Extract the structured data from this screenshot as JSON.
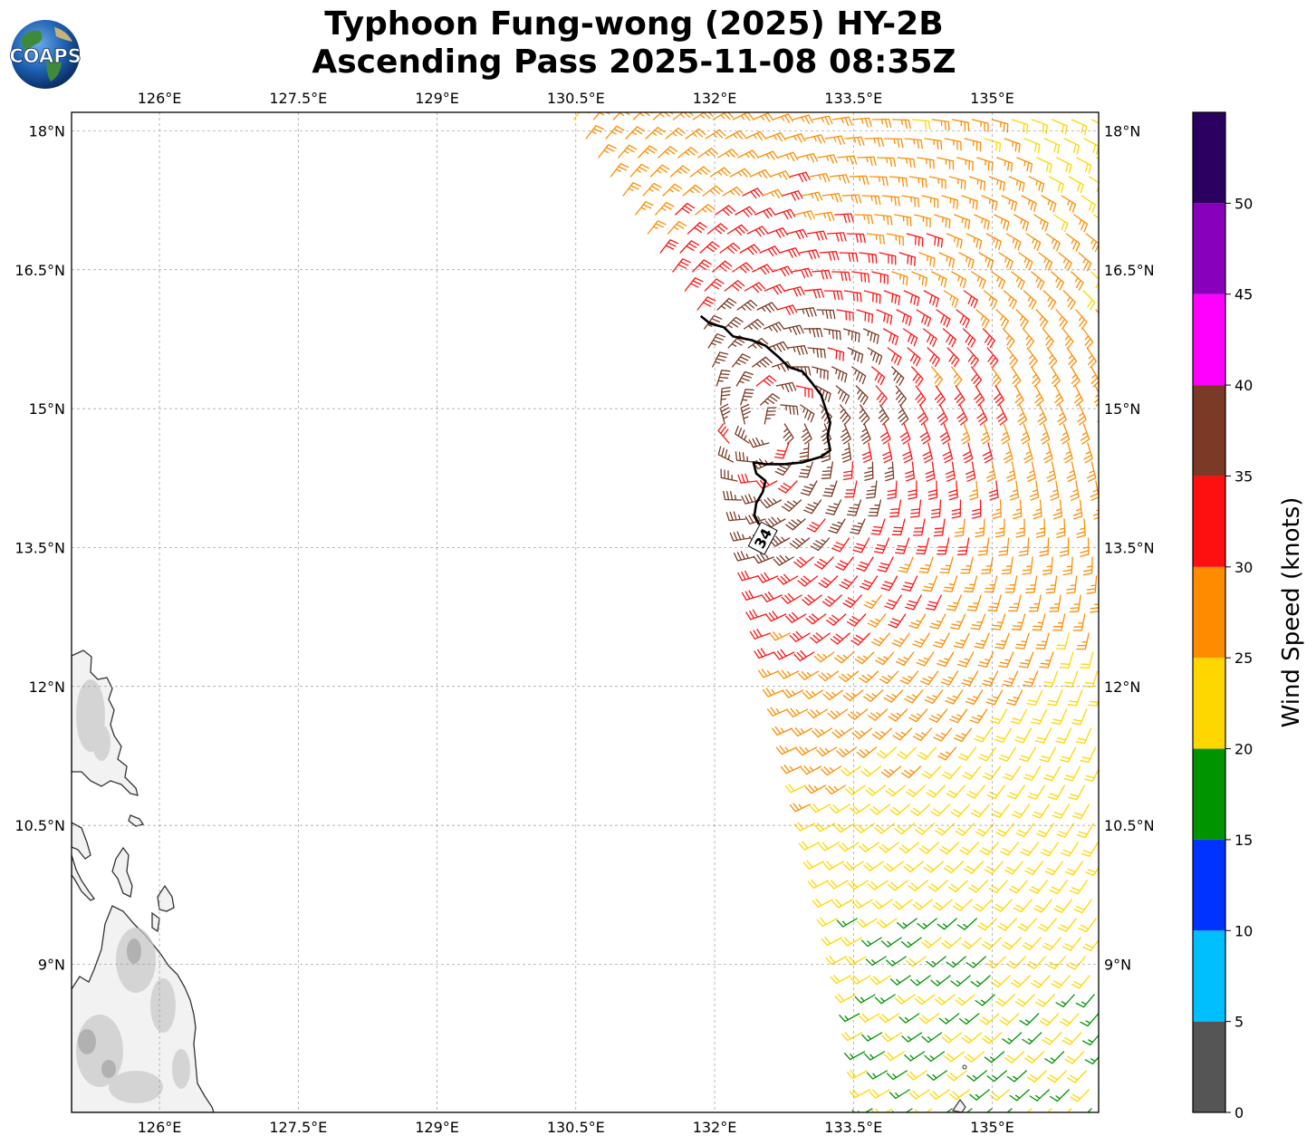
{
  "title_line1": "Typhoon Fung-wong (2025) HY-2B",
  "title_line2": "Ascending Pass 2025-11-08 08:35Z",
  "logo_text": "COAPS",
  "map": {
    "lon_range": [
      125.05,
      136.15
    ],
    "lat_range": [
      7.4,
      18.2
    ],
    "lon_ticks": [
      {
        "value": 126.0,
        "label": "126°E"
      },
      {
        "value": 127.5,
        "label": "127.5°E"
      },
      {
        "value": 129.0,
        "label": "129°E"
      },
      {
        "value": 130.5,
        "label": "130.5°E"
      },
      {
        "value": 132.0,
        "label": "132°E"
      },
      {
        "value": 133.5,
        "label": "133.5°E"
      },
      {
        "value": 135.0,
        "label": "135°E"
      }
    ],
    "lat_ticks": [
      {
        "value": 18.0,
        "label": "18°N"
      },
      {
        "value": 16.5,
        "label": "16.5°N"
      },
      {
        "value": 15.0,
        "label": "15°N"
      },
      {
        "value": 13.5,
        "label": "13.5°N"
      },
      {
        "value": 12.0,
        "label": "12°N"
      },
      {
        "value": 10.5,
        "label": "10.5°N"
      },
      {
        "value": 9.0,
        "label": "9°N"
      }
    ],
    "contour_label": "34",
    "contour_lonlat": [
      [
        131.85,
        16.0
      ],
      [
        131.95,
        15.92
      ],
      [
        132.1,
        15.88
      ],
      [
        132.2,
        15.78
      ],
      [
        132.4,
        15.74
      ],
      [
        132.55,
        15.68
      ],
      [
        132.7,
        15.55
      ],
      [
        132.8,
        15.45
      ],
      [
        132.95,
        15.4
      ],
      [
        133.05,
        15.28
      ],
      [
        133.15,
        15.15
      ],
      [
        133.2,
        15.0
      ],
      [
        133.25,
        14.85
      ],
      [
        133.22,
        14.7
      ],
      [
        133.25,
        14.55
      ],
      [
        133.15,
        14.48
      ],
      [
        132.95,
        14.42
      ],
      [
        132.75,
        14.4
      ],
      [
        132.55,
        14.4
      ],
      [
        132.42,
        14.42
      ],
      [
        132.45,
        14.3
      ],
      [
        132.55,
        14.22
      ],
      [
        132.52,
        14.1
      ],
      [
        132.45,
        13.98
      ],
      [
        132.43,
        13.85
      ],
      [
        132.48,
        13.75
      ]
    ],
    "contour_label_lonlat": [
      132.52,
      13.6
    ]
  },
  "wind_swath": {
    "west_edge": [
      [
        130.4,
        18.15
      ],
      [
        131.8,
        16.0
      ],
      [
        132.6,
        12.3
      ],
      [
        133.5,
        8.5
      ],
      [
        133.65,
        7.4
      ]
    ],
    "east_edge": [
      [
        136.15,
        18.15
      ],
      [
        136.15,
        7.4
      ]
    ],
    "center_lonlat": [
      132.6,
      14.8
    ],
    "units": "knots"
  },
  "colorbar": {
    "label": "Wind Speed (knots)",
    "bins": [
      {
        "min": 0,
        "max": 5,
        "color": "#555555"
      },
      {
        "min": 5,
        "max": 10,
        "color": "#00bfff"
      },
      {
        "min": 10,
        "max": 15,
        "color": "#0033ff"
      },
      {
        "min": 15,
        "max": 20,
        "color": "#009400"
      },
      {
        "min": 20,
        "max": 25,
        "color": "#ffd700"
      },
      {
        "min": 25,
        "max": 30,
        "color": "#ff8c00"
      },
      {
        "min": 30,
        "max": 35,
        "color": "#ff1010"
      },
      {
        "min": 35,
        "max": 40,
        "color": "#7b3a25"
      },
      {
        "min": 40,
        "max": 45,
        "color": "#ff00ff"
      },
      {
        "min": 45,
        "max": 50,
        "color": "#8800bb"
      },
      {
        "min": 50,
        "max": 55,
        "color": "#2a0060"
      }
    ],
    "tick_labels": [
      "0",
      "5",
      "10",
      "15",
      "20",
      "25",
      "30",
      "35",
      "40",
      "45",
      "50"
    ]
  }
}
